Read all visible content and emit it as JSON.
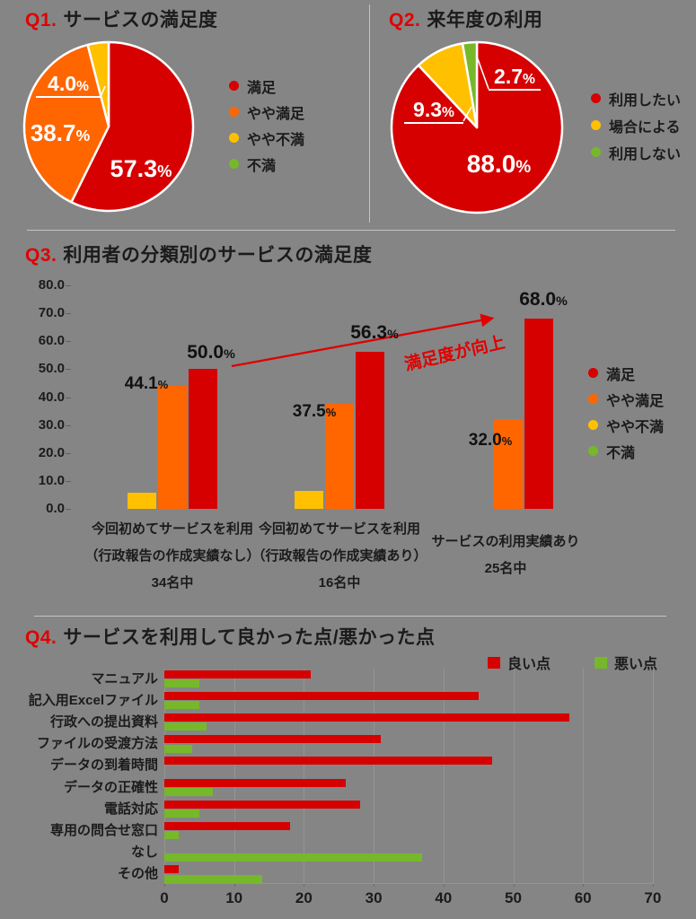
{
  "page": {
    "background": "#858585"
  },
  "colors": {
    "red": "#d60000",
    "orange": "#ff6600",
    "yellow": "#ffc000",
    "green": "#76b82a",
    "accent_red": "#e00000",
    "text": "#1b1b1b",
    "white": "#ffffff",
    "divider": "#c4c4c4",
    "grid": "#949494"
  },
  "chart_data": [
    {
      "id": "q1",
      "type": "pie",
      "question": "Q1.",
      "title": "サービスの満足度",
      "legend_position": "right",
      "slices": [
        {
          "label": "満足",
          "value": 57.3,
          "display": "57.3%",
          "color": "#d60000"
        },
        {
          "label": "やや満足",
          "value": 38.7,
          "display": "38.7%",
          "color": "#ff6600"
        },
        {
          "label": "やや不満",
          "value": 4.0,
          "display": "4.0%",
          "color": "#ffc000"
        },
        {
          "label": "不満",
          "value": 0.0,
          "display": "",
          "color": "#76b82a"
        }
      ]
    },
    {
      "id": "q2",
      "type": "pie",
      "question": "Q2.",
      "title": "来年度の利用",
      "legend_position": "right",
      "slices": [
        {
          "label": "利用したい",
          "value": 88.0,
          "display": "88.0%",
          "color": "#d60000"
        },
        {
          "label": "場合による",
          "value": 9.3,
          "display": "9.3%",
          "color": "#ffc000"
        },
        {
          "label": "利用しない",
          "value": 2.7,
          "display": "2.7%",
          "color": "#76b82a"
        }
      ]
    },
    {
      "id": "q3",
      "type": "bar",
      "question": "Q3.",
      "title": "利用者の分類別のサービスの満足度",
      "ylim": [
        0,
        80
      ],
      "grid": false,
      "legend_position": "right",
      "yticks": [
        "0.0",
        "10.0",
        "20.0",
        "30.0",
        "40.0",
        "50.0",
        "60.0",
        "70.0",
        "80.0"
      ],
      "categories": [
        [
          "今回初めてサービスを利用",
          "（行政報告の作成実績なし）",
          "34名中"
        ],
        [
          "今回初めてサービスを利用",
          "（行政報告の作成実績あり）",
          "16名中"
        ],
        [
          "サービスの利用実績あり",
          "25名中"
        ]
      ],
      "series": [
        {
          "name": "やや不満",
          "color": "#ffc000",
          "values": [
            5.9,
            6.3,
            0
          ]
        },
        {
          "name": "やや満足",
          "color": "#ff6600",
          "values": [
            44.1,
            37.5,
            32.0
          ]
        },
        {
          "name": "満足",
          "color": "#d60000",
          "values": [
            50.0,
            56.3,
            68.0
          ]
        }
      ],
      "bar_labels": [
        "44.1%",
        "50.0%",
        "37.5%",
        "56.3%",
        "32.0%",
        "68.0%"
      ],
      "legend": [
        {
          "label": "満足",
          "color": "#d60000"
        },
        {
          "label": "やや満足",
          "color": "#ff6600"
        },
        {
          "label": "やや不満",
          "color": "#ffc000"
        },
        {
          "label": "不満",
          "color": "#76b82a"
        }
      ],
      "annotation": "満足度が向上"
    },
    {
      "id": "q4",
      "type": "bar-horizontal",
      "question": "Q4.",
      "title": "サービスを利用して良かった点/悪かった点",
      "xlim": [
        0,
        70
      ],
      "xticks": [
        0,
        10,
        20,
        30,
        40,
        50,
        60,
        70
      ],
      "grid": true,
      "legend_position": "top",
      "categories": [
        "マニュアル",
        "記入用Excelファイル",
        "行政への提出資料",
        "ファイルの受渡方法",
        "データの到着時間",
        "データの正確性",
        "電話対応",
        "専用の問合せ窓口",
        "なし",
        "その他"
      ],
      "series": [
        {
          "name": "良い点",
          "color": "#d60000",
          "values": [
            21,
            45,
            58,
            31,
            47,
            26,
            28,
            18,
            0,
            2
          ]
        },
        {
          "name": "悪い点",
          "color": "#76b82a",
          "values": [
            5,
            5,
            6,
            4,
            0,
            7,
            5,
            2,
            37,
            14
          ]
        }
      ]
    }
  ]
}
